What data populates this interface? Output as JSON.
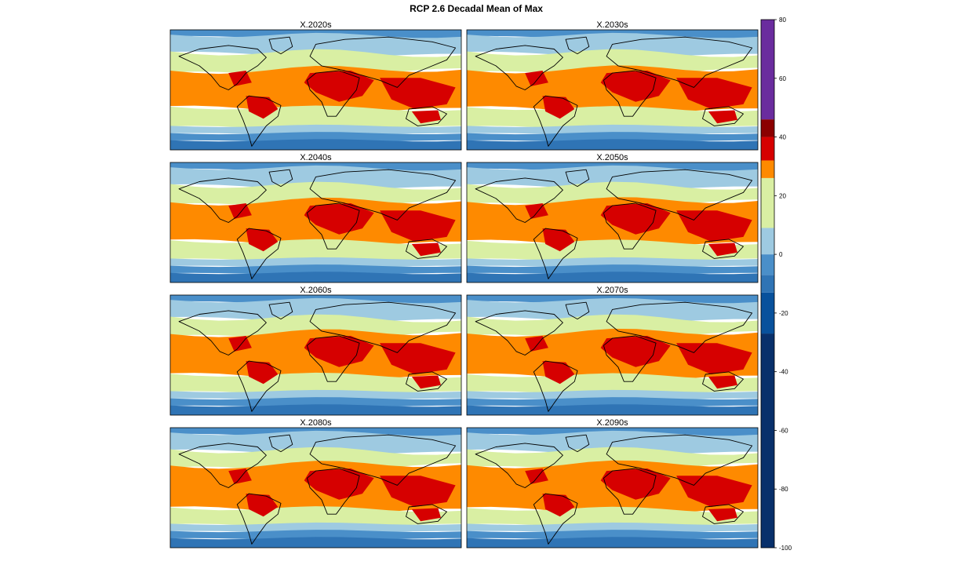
{
  "title": "RCP 2.6 Decadal Mean of Max",
  "panels": [
    {
      "label": "X.2020s"
    },
    {
      "label": "X.2030s"
    },
    {
      "label": "X.2040s"
    },
    {
      "label": "X.2050s"
    },
    {
      "label": "X.2060s"
    },
    {
      "label": "X.2070s"
    },
    {
      "label": "X.2080s"
    },
    {
      "label": "X.2090s"
    }
  ],
  "colorbar": {
    "range": [
      -100,
      80
    ],
    "ticks": [
      "80",
      "60",
      "40",
      "20",
      "0",
      "-20",
      "-40",
      "-60",
      "-80",
      "-100"
    ],
    "tick_values": [
      80,
      60,
      40,
      20,
      0,
      -20,
      -40,
      -60,
      -80,
      -100
    ],
    "bins": [
      {
        "from": -100,
        "to": -27,
        "color": "#08306b"
      },
      {
        "from": -27,
        "to": -13,
        "color": "#08519c"
      },
      {
        "from": -13,
        "to": -7,
        "color": "#2f74b5"
      },
      {
        "from": -7,
        "to": 0,
        "color": "#4a8fc9"
      },
      {
        "from": 0,
        "to": 9,
        "color": "#9ecae1"
      },
      {
        "from": 9,
        "to": 26,
        "color": "#d9efa3"
      },
      {
        "from": 26,
        "to": 32,
        "color": "#fe8a00"
      },
      {
        "from": 32,
        "to": 40,
        "color": "#d60000"
      },
      {
        "from": 40,
        "to": 46,
        "color": "#8b0000"
      },
      {
        "from": 46,
        "to": 80,
        "color": "#6a2c9e"
      }
    ]
  },
  "zone_colors": {
    "polar_dark": "#2f74b5",
    "polar": "#4a8fc9",
    "cold": "#9ecae1",
    "temperate": "#d9efa3",
    "warm": "#fe8a00",
    "hot": "#d60000",
    "land_outline": "#000000"
  }
}
